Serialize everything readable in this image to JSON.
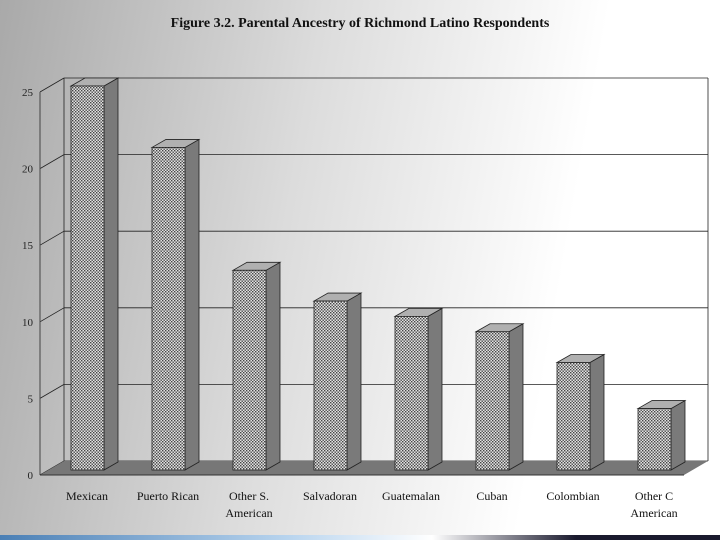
{
  "chart_data": {
    "type": "bar",
    "title": "Figure 3.2. Parental Ancestry of Richmond Latino Respondents",
    "categories": [
      [
        "Mexican"
      ],
      [
        "Puerto Rican"
      ],
      [
        "Other S.",
        "American"
      ],
      [
        "Salvadoran"
      ],
      [
        "Guatemalan"
      ],
      [
        "Cuban"
      ],
      [
        "Colombian"
      ],
      [
        "Other C",
        "American"
      ]
    ],
    "values": [
      25,
      21,
      13,
      11,
      10,
      9,
      7,
      4
    ],
    "ylim": [
      0,
      25
    ],
    "yticks": [
      0,
      5,
      10,
      15,
      20,
      25
    ],
    "xlabel": "",
    "ylabel": "",
    "grid": true,
    "bar_style": "3d-dotted",
    "colors": {
      "bar_front": "#d8d8d8",
      "bar_dots": "#555555",
      "bar_side": "#7a7a7a",
      "bar_top": "#b0b0b0",
      "floor": "#777777",
      "gridline": "#222222"
    }
  }
}
